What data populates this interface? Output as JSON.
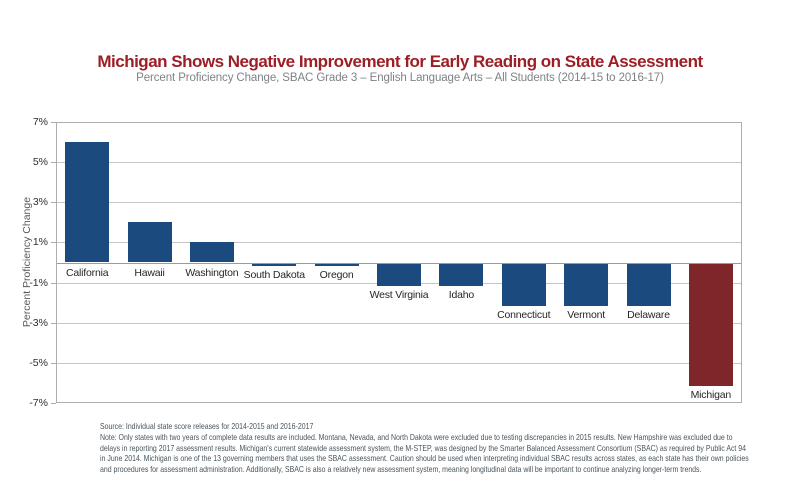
{
  "header": {
    "title": "Michigan Shows Negative Improvement for Early Reading on State Assessment",
    "subtitle": "Percent Proficiency Change, SBAC Grade 3 – English Language Arts – All Students (2014-15 to 2016-17)",
    "title_color": "#9d1f26",
    "subtitle_color": "#7f8285"
  },
  "chart_data": {
    "type": "bar",
    "title": "Michigan Shows Negative Improvement for Early Reading on State Assessment",
    "subtitle": "Percent Proficiency Change, SBAC Grade 3 – English Language Arts – All Students (2014-15 to 2016-17)",
    "xlabel": "",
    "ylabel": "Percent Proficiency Change",
    "ylim": [
      -7,
      7
    ],
    "ytick_values": [
      7,
      5,
      3,
      1,
      -1,
      -3,
      -5,
      -7
    ],
    "ytick_labels": [
      "7%",
      "5%",
      "3%",
      "1%",
      "-1%",
      "-3%",
      "-5%",
      "-7%"
    ],
    "grid": "horizontal",
    "legend": "none",
    "categories": [
      "California",
      "Hawaii",
      "Washington",
      "South Dakota",
      "Oregon",
      "West Virginia",
      "Idaho",
      "Connecticut",
      "Vermont",
      "Delaware",
      "Michigan"
    ],
    "values": [
      6.0,
      2.0,
      1.0,
      -0.1,
      -0.1,
      -1.1,
      -1.1,
      -2.1,
      -2.1,
      -2.1,
      -6.1
    ],
    "bar_color_default": "#1a4a7e",
    "bar_color_highlight": "#7e262a",
    "highlight_category": "Michigan",
    "zero_baseline": true
  },
  "footnote": {
    "color": "#47555e",
    "lines": [
      "Source: Individual state score releases for 2014-2015 and 2016-2017",
      "Note: Only states with two years of complete data results are included. Montana, Nevada, and North Dakota were excluded due to testing discrepancies in 2015 results. New Hampshire was excluded due to",
      "delays in reporting 2017 assessment results. Michigan's current statewide assessment system, the M-STEP, was designed by the Smarter Balanced Assessment Consortium (SBAC) as required by Public Act 94",
      "in June 2014. Michigan is one of the 13 governing members that uses the SBAC assessment. Caution should be used when interpreting individual SBAC results across states, as each state has their own policies",
      "and procedures for assessment administration. Additionally, SBAC is also a relatively new assessment system, meaning longitudinal data will be important to continue analyzing longer-term trends."
    ]
  }
}
